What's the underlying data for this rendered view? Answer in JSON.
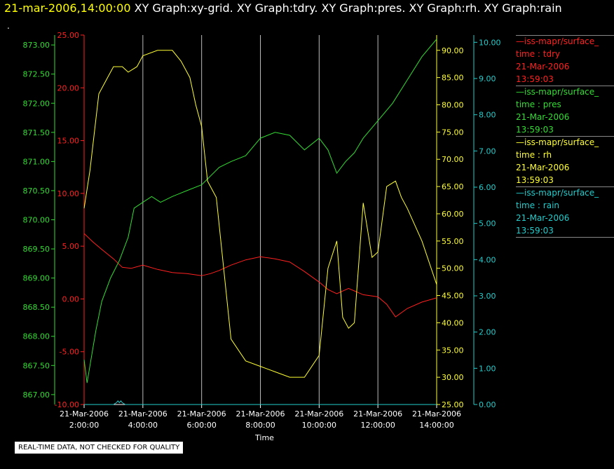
{
  "header": {
    "timestamp": "21-mar-2006,14:00:00",
    "graphs": "  XY Graph:xy-grid.  XY Graph:tdry.  XY Graph:pres.  XY Graph:rh.  XY Graph:rain",
    "dot": "."
  },
  "legend": [
    {
      "line1": "—iss-mapr/surface_",
      "line2": "time : tdry",
      "line3": "21-Mar-2006",
      "line4": "13:59:03",
      "color": "#ff2020"
    },
    {
      "line1": "—iss-mapr/surface_",
      "line2": "time : pres",
      "line3": "21-Mar-2006",
      "line4": "13:59:03",
      "color": "#33dd33"
    },
    {
      "line1": "—iss-mapr/surface_",
      "line2": "time : rh",
      "line3": "21-Mar-2006",
      "line4": "13:59:03",
      "color": "#ffff33"
    },
    {
      "line1": "—iss-mapr/surface_",
      "line2": "time : rain",
      "line3": "21-Mar-2006",
      "line4": "13:59:03",
      "color": "#22cccc"
    }
  ],
  "warning": "REAL-TIME DATA, NOT CHECKED FOR QUALITY",
  "chart_data": {
    "type": "line",
    "xlabel": "Time",
    "x_ticks": [
      {
        "date": "21-Mar-2006",
        "time": "2:00:00",
        "hour": 2
      },
      {
        "date": "21-Mar-2006",
        "time": "4:00:00",
        "hour": 4
      },
      {
        "date": "21-Mar-2006",
        "time": "6:00:00",
        "hour": 6
      },
      {
        "date": "21-Mar-2006",
        "time": "8:00:00",
        "hour": 8
      },
      {
        "date": "21-Mar-2006",
        "time": "10:00:00",
        "hour": 10
      },
      {
        "date": "21-Mar-2006",
        "time": "12:00:00",
        "hour": 12
      },
      {
        "date": "21-Mar-2006",
        "time": "14:00:00",
        "hour": 14
      }
    ],
    "xlim": [
      2,
      14
    ],
    "axes": {
      "tdry": {
        "color": "#ff2020",
        "ylim": [
          -10,
          25
        ],
        "ticks": [
          "-10.00",
          "-5.00",
          "0.00",
          "5.00",
          "10.00",
          "15.00",
          "20.00",
          "25.00"
        ]
      },
      "pres": {
        "color": "#33dd33",
        "ylim": [
          866.83,
          873.17
        ],
        "ticks": [
          "867.00",
          "867.50",
          "868.00",
          "868.50",
          "869.00",
          "869.50",
          "870.00",
          "870.50",
          "871.00",
          "871.50",
          "872.00",
          "872.50",
          "873.00"
        ]
      },
      "rh": {
        "color": "#ffff33",
        "ylim": [
          25,
          92.8
        ],
        "ticks": [
          "25.00",
          "30.00",
          "35.00",
          "40.00",
          "45.00",
          "50.00",
          "55.00",
          "60.00",
          "65.00",
          "70.00",
          "75.00",
          "80.00",
          "85.00",
          "90.00"
        ]
      },
      "rain": {
        "color": "#22cccc",
        "ylim": [
          0,
          10.2
        ],
        "ticks": [
          "0.00",
          "1.00",
          "2.00",
          "3.00",
          "4.00",
          "5.00",
          "6.00",
          "7.00",
          "8.00",
          "9.00",
          "10.00"
        ]
      }
    },
    "series": [
      {
        "name": "tdry",
        "axis": "tdry",
        "x": [
          2.0,
          2.3,
          2.6,
          3.0,
          3.3,
          3.6,
          4.0,
          4.5,
          5.0,
          5.5,
          6.0,
          6.3,
          6.6,
          7.0,
          7.5,
          8.0,
          8.5,
          9.0,
          9.5,
          10.0,
          10.3,
          10.6,
          11.0,
          11.5,
          12.0,
          12.3,
          12.6,
          13.0,
          13.5,
          14.0
        ],
        "values": [
          6.2,
          5.4,
          4.7,
          3.8,
          3.0,
          2.9,
          3.2,
          2.8,
          2.5,
          2.4,
          2.2,
          2.4,
          2.7,
          3.2,
          3.7,
          4.0,
          3.8,
          3.5,
          2.6,
          1.6,
          0.9,
          0.5,
          1.0,
          0.4,
          0.2,
          -0.5,
          -1.7,
          -0.9,
          -0.3,
          0.1
        ]
      },
      {
        "name": "pres",
        "axis": "pres",
        "x": [
          2.0,
          2.1,
          2.2,
          2.4,
          2.6,
          2.9,
          3.2,
          3.5,
          3.7,
          4.0,
          4.3,
          4.6,
          5.0,
          5.5,
          6.0,
          6.3,
          6.6,
          7.0,
          7.5,
          8.0,
          8.5,
          9.0,
          9.5,
          10.0,
          10.3,
          10.6,
          10.9,
          11.2,
          11.5,
          12.0,
          12.5,
          13.0,
          13.5,
          14.0
        ],
        "values": [
          867.6,
          867.2,
          867.5,
          868.1,
          868.6,
          869.0,
          869.3,
          869.7,
          870.2,
          870.3,
          870.4,
          870.3,
          870.4,
          870.5,
          870.6,
          870.75,
          870.9,
          871.0,
          871.1,
          871.4,
          871.5,
          871.45,
          871.2,
          871.4,
          871.2,
          870.8,
          871.0,
          871.15,
          871.4,
          871.7,
          872.0,
          872.4,
          872.8,
          873.1
        ]
      },
      {
        "name": "rh",
        "axis": "rh",
        "x": [
          2.0,
          2.2,
          2.5,
          2.8,
          3.0,
          3.3,
          3.5,
          3.8,
          4.0,
          4.5,
          5.0,
          5.3,
          5.6,
          5.8,
          6.0,
          6.2,
          6.5,
          7.0,
          7.5,
          8.0,
          8.5,
          9.0,
          9.5,
          10.0,
          10.3,
          10.6,
          10.8,
          11.0,
          11.2,
          11.5,
          11.8,
          12.0,
          12.3,
          12.6,
          12.8,
          13.0,
          13.5,
          14.0
        ],
        "values": [
          61,
          68,
          82,
          85,
          87,
          87,
          86,
          87,
          89,
          90,
          90,
          88,
          85,
          80,
          76,
          66,
          63,
          37,
          33,
          32,
          31,
          30,
          30,
          34,
          50,
          55,
          41,
          39,
          40,
          62,
          52,
          53,
          65,
          66,
          63,
          61,
          55,
          47
        ]
      },
      {
        "name": "rain",
        "axis": "rain",
        "x": [
          2.0,
          3.0,
          3.1,
          3.15,
          3.2,
          3.25,
          3.3,
          3.4,
          4.0,
          14.0
        ],
        "values": [
          0,
          0,
          0.05,
          0.1,
          0.05,
          0.1,
          0.05,
          0,
          0,
          0
        ]
      }
    ]
  }
}
